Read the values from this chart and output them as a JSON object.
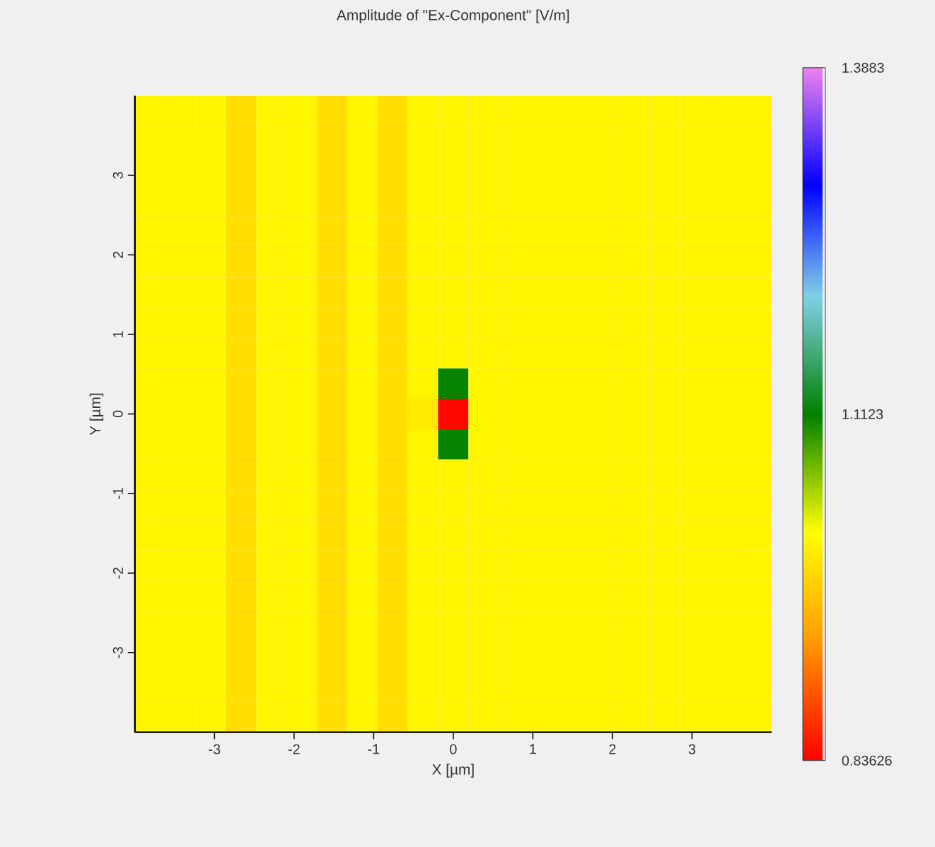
{
  "chart_data": {
    "type": "heatmap",
    "title": "Amplitude of \"Ex-Component\"  [V/m]",
    "xlabel": "X [µm]",
    "ylabel": "Y [µm]",
    "x": [
      -3.81,
      -3.429,
      -3.048,
      -2.667,
      -2.286,
      -1.905,
      -1.524,
      -1.143,
      -0.762,
      -0.381,
      0,
      0.381,
      0.762,
      1.143,
      1.524,
      1.905,
      2.286,
      2.667,
      3.048,
      3.429,
      3.81
    ],
    "y": [
      3.81,
      3.429,
      3.048,
      2.667,
      2.286,
      1.905,
      1.524,
      1.143,
      0.762,
      0.381,
      0,
      -0.381,
      -0.762,
      -1.143,
      -1.524,
      -1.905,
      -2.286,
      -2.667,
      -3.048,
      -3.429,
      -3.81
    ],
    "cells": [
      [
        1.01,
        1.01,
        1.01,
        0.99,
        1.01,
        1.01,
        0.99,
        1.01,
        0.99,
        1.01,
        1.01,
        1.01,
        1.01,
        1.01,
        1.01,
        1.01,
        1.01,
        1.01,
        1.01,
        1.01,
        1.01
      ],
      [
        1.01,
        1.01,
        1.01,
        0.99,
        1.01,
        1.01,
        0.99,
        1.01,
        0.99,
        1.01,
        1.01,
        1.01,
        1.01,
        1.01,
        1.01,
        1.01,
        1.01,
        1.01,
        1.01,
        1.01,
        1.01
      ],
      [
        1.01,
        1.01,
        1.01,
        0.99,
        1.01,
        1.01,
        0.99,
        1.01,
        0.99,
        1.01,
        1.01,
        1.01,
        1.01,
        1.01,
        1.01,
        1.01,
        1.01,
        1.01,
        1.01,
        1.01,
        1.01
      ],
      [
        1.01,
        1.01,
        1.01,
        0.99,
        1.01,
        1.01,
        0.99,
        1.01,
        0.99,
        1.01,
        1.01,
        1.01,
        1.01,
        1.01,
        1.01,
        1.01,
        1.01,
        1.01,
        1.01,
        1.01,
        1.01
      ],
      [
        1.01,
        1.01,
        1.01,
        0.99,
        1.01,
        1.01,
        0.99,
        1.01,
        0.99,
        1.01,
        1.01,
        1.01,
        1.01,
        1.01,
        1.01,
        1.01,
        1.01,
        1.01,
        1.01,
        1.01,
        1.01
      ],
      [
        1.01,
        1.01,
        1.01,
        0.99,
        1.01,
        1.01,
        0.99,
        1.01,
        0.99,
        1.01,
        1.01,
        1.01,
        1.01,
        1.01,
        1.01,
        1.01,
        1.01,
        1.01,
        1.01,
        1.01,
        1.01
      ],
      [
        1.01,
        1.01,
        1.01,
        0.99,
        1.01,
        1.01,
        0.99,
        1.01,
        0.99,
        1.01,
        1.01,
        1.01,
        1.01,
        1.01,
        1.01,
        1.01,
        1.01,
        1.01,
        1.01,
        1.01,
        1.01
      ],
      [
        1.01,
        1.01,
        1.01,
        0.99,
        1.01,
        1.01,
        0.99,
        1.01,
        0.99,
        1.01,
        1.01,
        1.01,
        1.01,
        1.01,
        1.01,
        1.01,
        1.01,
        1.01,
        1.01,
        1.01,
        1.01
      ],
      [
        1.01,
        1.01,
        1.01,
        0.99,
        1.01,
        1.01,
        0.99,
        1.01,
        0.99,
        1.01,
        1.01,
        1.01,
        1.01,
        1.01,
        1.01,
        1.01,
        1.01,
        1.01,
        1.01,
        1.01,
        1.01
      ],
      [
        1.01,
        1.01,
        1.01,
        0.99,
        1.01,
        1.01,
        0.99,
        1.01,
        0.99,
        1.01,
        1.11,
        1.01,
        1.01,
        1.01,
        1.01,
        1.01,
        1.01,
        1.01,
        1.01,
        1.01,
        1.01
      ],
      [
        1.01,
        1.01,
        1.01,
        0.99,
        1.01,
        1.01,
        0.99,
        1.01,
        0.99,
        1.0,
        0.84,
        1.01,
        1.01,
        1.01,
        1.01,
        1.01,
        1.01,
        1.01,
        1.01,
        1.01,
        1.01
      ],
      [
        1.01,
        1.01,
        1.01,
        0.99,
        1.01,
        1.01,
        0.99,
        1.01,
        0.99,
        1.01,
        1.11,
        1.01,
        1.01,
        1.01,
        1.01,
        1.01,
        1.01,
        1.01,
        1.01,
        1.01,
        1.01
      ],
      [
        1.01,
        1.01,
        1.01,
        0.99,
        1.01,
        1.01,
        0.99,
        1.01,
        0.99,
        1.01,
        1.01,
        1.01,
        1.01,
        1.01,
        1.01,
        1.01,
        1.01,
        1.01,
        1.01,
        1.01,
        1.01
      ],
      [
        1.01,
        1.01,
        1.01,
        0.99,
        1.01,
        1.01,
        0.99,
        1.01,
        0.99,
        1.01,
        1.01,
        1.01,
        1.01,
        1.01,
        1.01,
        1.01,
        1.01,
        1.01,
        1.01,
        1.01,
        1.01
      ],
      [
        1.01,
        1.01,
        1.01,
        0.99,
        1.01,
        1.01,
        0.99,
        1.01,
        0.99,
        1.01,
        1.01,
        1.01,
        1.01,
        1.01,
        1.01,
        1.01,
        1.01,
        1.01,
        1.01,
        1.01,
        1.01
      ],
      [
        1.01,
        1.01,
        1.01,
        0.99,
        1.01,
        1.01,
        0.99,
        1.01,
        0.99,
        1.01,
        1.01,
        1.01,
        1.01,
        1.01,
        1.01,
        1.01,
        1.01,
        1.01,
        1.01,
        1.01,
        1.01
      ],
      [
        1.01,
        1.01,
        1.01,
        0.99,
        1.01,
        1.01,
        0.99,
        1.01,
        0.99,
        1.01,
        1.01,
        1.01,
        1.01,
        1.01,
        1.01,
        1.01,
        1.01,
        1.01,
        1.01,
        1.01,
        1.01
      ],
      [
        1.01,
        1.01,
        1.01,
        0.99,
        1.01,
        1.01,
        0.99,
        1.01,
        0.99,
        1.01,
        1.01,
        1.01,
        1.01,
        1.01,
        1.01,
        1.01,
        1.01,
        1.01,
        1.01,
        1.01,
        1.01
      ],
      [
        1.01,
        1.01,
        1.01,
        0.99,
        1.01,
        1.01,
        0.99,
        1.01,
        0.99,
        1.01,
        1.01,
        1.01,
        1.01,
        1.01,
        1.01,
        1.01,
        1.01,
        1.01,
        1.01,
        1.01,
        1.01
      ],
      [
        1.01,
        1.01,
        1.01,
        0.99,
        1.01,
        1.01,
        0.99,
        1.01,
        0.99,
        1.01,
        1.01,
        1.01,
        1.01,
        1.01,
        1.01,
        1.01,
        1.01,
        1.01,
        1.01,
        1.01,
        1.01
      ],
      [
        1.01,
        1.01,
        1.01,
        0.99,
        1.01,
        1.01,
        0.99,
        1.01,
        0.99,
        1.01,
        1.01,
        1.01,
        1.01,
        1.01,
        1.01,
        1.01,
        1.01,
        1.01,
        1.01,
        1.01,
        1.01
      ]
    ],
    "xlim": [
      -4,
      4
    ],
    "ylim": [
      -4,
      4
    ],
    "xticks": [
      -3,
      -2,
      -1,
      0,
      1,
      2,
      3
    ],
    "yticks": [
      -3,
      -2,
      -1,
      0,
      1,
      2,
      3
    ],
    "clim": [
      0.83626,
      1.3883
    ],
    "cticks": [
      0.83626,
      1.1123,
      1.3883
    ]
  }
}
